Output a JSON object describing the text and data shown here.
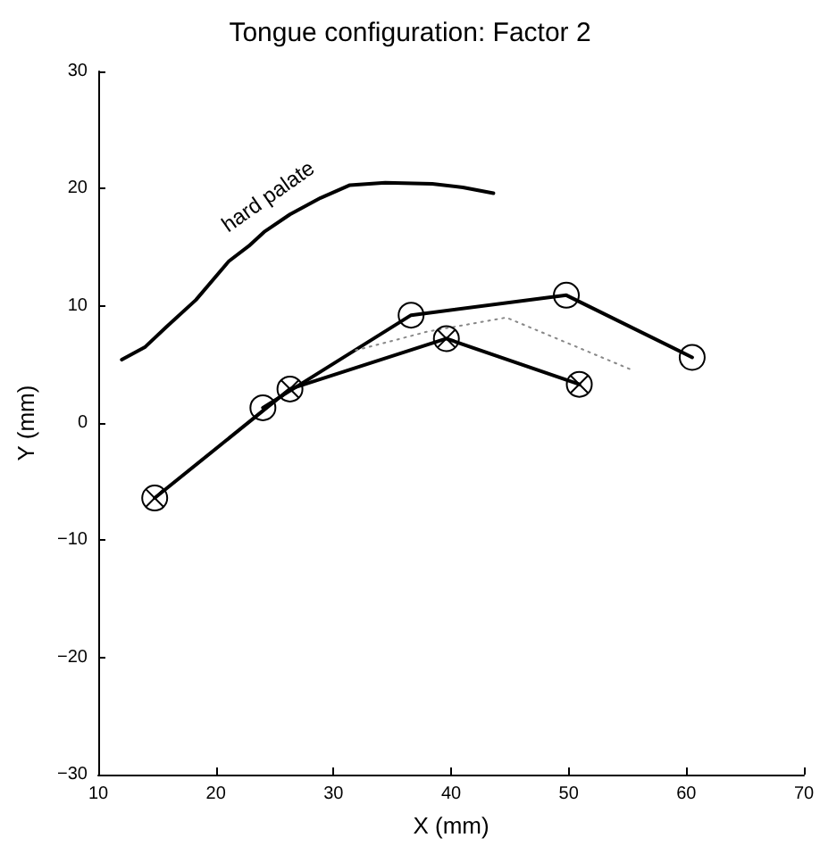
{
  "chart_data": {
    "type": "line",
    "title": "Tongue configuration: Factor 2",
    "xlabel": "X (mm)",
    "ylabel": "Y (mm)",
    "xlim": [
      10,
      70
    ],
    "xticks": [
      10,
      20,
      30,
      40,
      50,
      60,
      70
    ],
    "ylim": [
      -30,
      30
    ],
    "yticks": [
      -30,
      -20,
      -10,
      0,
      10,
      20,
      30
    ],
    "grid": false,
    "legend": false,
    "line_style": "solid",
    "annotations": [
      "hard palate"
    ],
    "series": [
      {
        "color": "#000000",
        "marker": "none",
        "x": [
          12.0,
          14.0,
          15.8,
          18.3,
          21.1,
          22.8,
          24.1,
          26.3,
          28.9,
          31.4,
          34.4,
          38.4,
          41.0,
          43.6
        ],
        "values": [
          5.4,
          6.5,
          8.2,
          10.5,
          13.8,
          15.1,
          16.3,
          17.8,
          19.2,
          20.3,
          20.5,
          20.4,
          20.1,
          19.6
        ]
      },
      {
        "color": "#000000",
        "marker": "circle",
        "x": [
          24.0,
          36.6,
          49.8,
          60.5
        ],
        "values": [
          1.3,
          9.2,
          10.9,
          5.6
        ]
      },
      {
        "color": "#000000",
        "marker": "cross",
        "x": [
          14.8,
          26.3,
          39.6,
          50.9
        ],
        "values": [
          -6.4,
          2.9,
          7.2,
          3.3
        ]
      },
      {
        "color": "#888888",
        "marker": "none",
        "line_style": "dotted",
        "x": [
          31.9,
          38.0,
          44.7,
          55.2
        ],
        "values": [
          6.2,
          7.8,
          9.0,
          4.6
        ]
      }
    ]
  }
}
